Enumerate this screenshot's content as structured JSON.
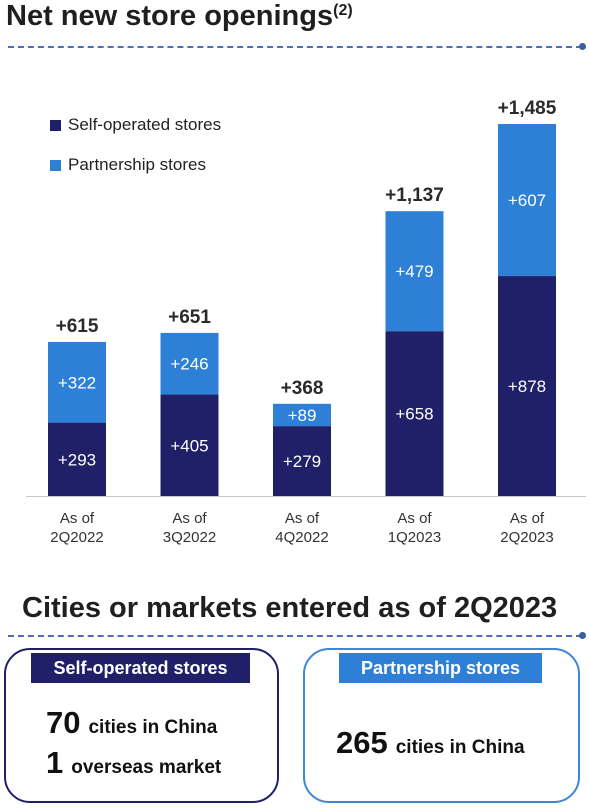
{
  "section1": {
    "title": "Net new store openings",
    "title_sup": "(2)"
  },
  "section2": {
    "title": "Cities or markets entered as of 2Q2023"
  },
  "colors": {
    "self_operated": "#1f2068",
    "partnership": "#2e80d6",
    "title_text": "#1f1f1f",
    "dash": "#4a6fb8"
  },
  "chart_data": {
    "type": "bar",
    "stacked": true,
    "categories": [
      [
        "As of",
        "2Q2022"
      ],
      [
        "As of",
        "3Q2022"
      ],
      [
        "As of",
        "4Q2022"
      ],
      [
        "As of",
        "1Q2023"
      ],
      [
        "As of",
        "2Q2023"
      ]
    ],
    "series": [
      {
        "name": "Self-operated stores",
        "values": [
          293,
          405,
          279,
          658,
          878
        ],
        "labels": [
          "+293",
          "+405",
          "+279",
          "+658",
          "+878"
        ]
      },
      {
        "name": "Partnership stores",
        "values": [
          322,
          246,
          89,
          479,
          607
        ],
        "labels": [
          "+322",
          "+246",
          "+89",
          "+479",
          "+607"
        ]
      }
    ],
    "totals": [
      615,
      651,
      368,
      1137,
      1485
    ],
    "total_labels": [
      "+615",
      "+651",
      "+368",
      "+1,137",
      "+1,485"
    ],
    "ylim": [
      0,
      1485
    ],
    "grid": false,
    "legend_position": "top-left"
  },
  "summary": {
    "self_operated": {
      "heading": "Self-operated stores",
      "line1_num": "70",
      "line1_text": "cities in China",
      "line2_num": "1",
      "line2_text": "overseas market"
    },
    "partnership": {
      "heading": "Partnership stores",
      "line1_num": "265",
      "line1_text": "cities in China"
    }
  }
}
